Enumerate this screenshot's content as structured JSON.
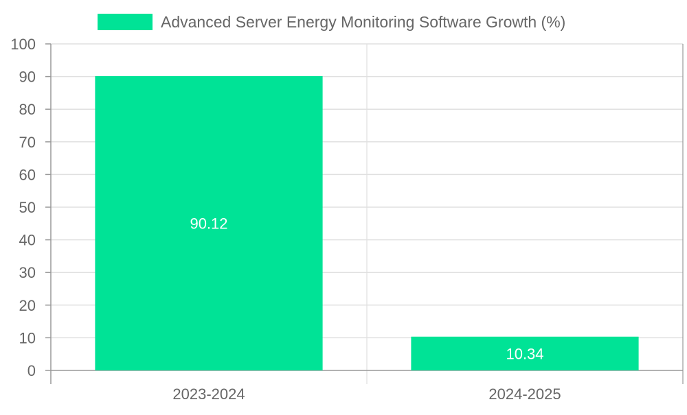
{
  "chart_data": {
    "type": "bar",
    "categories": [
      "2023-2024",
      "2024-2025"
    ],
    "series": [
      {
        "name": "Advanced Server Energy Monitoring Software Growth (%)",
        "values": [
          90.12,
          10.34
        ],
        "data_labels": [
          "90.12",
          "10.34"
        ],
        "color": "#00E396"
      }
    ],
    "title": "",
    "xlabel": "",
    "ylabel": "",
    "ylim": [
      0,
      100
    ],
    "yticks": [
      0,
      10,
      20,
      30,
      40,
      50,
      60,
      70,
      80,
      90,
      100
    ],
    "grid": true,
    "legend": "top-center"
  },
  "colors": {
    "bar": "#00E396",
    "grid": "#e0e0e0",
    "axis": "#999999",
    "tick_text": "#666666",
    "label_text": "#ffffff"
  }
}
